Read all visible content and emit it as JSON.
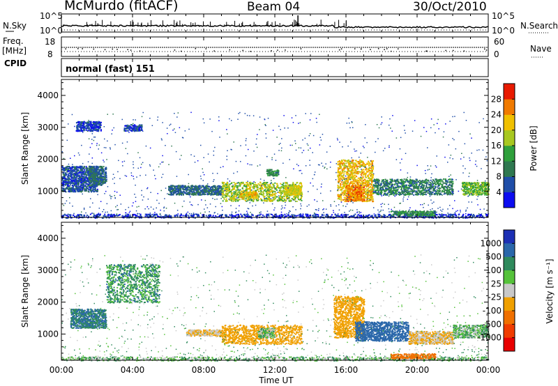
{
  "header": {
    "station": "McMurdo (fitACF)",
    "beam": "Beam 04",
    "date": "30/Oct/2010"
  },
  "noise_panel": {
    "left_label": "N.Sky",
    "right_label": "N.Search",
    "left_ticks": [
      "10^5",
      "10^0"
    ],
    "right_ticks": [
      "10^5",
      "10^0"
    ]
  },
  "freq_panel": {
    "left_label_line1": "Freq.",
    "left_label_line2": "[MHz]",
    "right_label": "Nave",
    "left_ticks": [
      "18",
      "8"
    ],
    "right_ticks": [
      "60",
      "0"
    ]
  },
  "cpid": {
    "label": "CPID",
    "value": "normal (fast) 151"
  },
  "axes": {
    "ylabel": "Slant Range [km]",
    "xlabel": "Time UT",
    "y_ticks": [
      "4000",
      "3000",
      "2000",
      "1000"
    ],
    "x_ticks": [
      "00:00",
      "04:00",
      "08:00",
      "12:00",
      "16:00",
      "20:00",
      "00:00"
    ]
  },
  "power_scale": {
    "label": "Power [dB]",
    "ticks": [
      "28",
      "24",
      "20",
      "16",
      "12",
      "8",
      "4"
    ],
    "colors": [
      "#0c0cf0",
      "#1f4ea8",
      "#2f7850",
      "#2fa03c",
      "#a8c820",
      "#f0c000",
      "#f07a00",
      "#e81a00"
    ]
  },
  "velocity_scale": {
    "label": "Velocity [m s⁻¹]",
    "ticks": [
      "1000",
      "500",
      "100",
      "25",
      "-25",
      "-100",
      "-500",
      "-1000"
    ],
    "colors": [
      "#1c2fb4",
      "#2a67aa",
      "#2f8a5c",
      "#55c23a",
      "#c8c8c8",
      "#f0a000",
      "#f07000",
      "#f03c00",
      "#e80000"
    ]
  },
  "chart_data": [
    {
      "type": "heatmap",
      "title": "Power",
      "xlabel": "Time UT",
      "ylabel": "Slant Range [km]",
      "xlim": [
        0,
        24
      ],
      "ylim": [
        180,
        4500
      ],
      "colorbar": "Power [dB]",
      "clim": [
        0,
        32
      ],
      "echo_regions": [
        {
          "t_start": 0.0,
          "t_end": 24.0,
          "range_min": 180,
          "range_max": 300,
          "power": 4
        },
        {
          "t_start": 0.0,
          "t_end": 2.0,
          "range_min": 1000,
          "range_max": 1800,
          "power": 6
        },
        {
          "t_start": 1.5,
          "t_end": 2.5,
          "range_min": 1200,
          "range_max": 1800,
          "power": 8
        },
        {
          "t_start": 0.8,
          "t_end": 2.2,
          "range_min": 2900,
          "range_max": 3200,
          "power": 5
        },
        {
          "t_start": 3.5,
          "t_end": 4.5,
          "range_min": 2900,
          "range_max": 3100,
          "power": 5
        },
        {
          "t_start": 6.0,
          "t_end": 9.0,
          "range_min": 900,
          "range_max": 1200,
          "power": 8
        },
        {
          "t_start": 9.0,
          "t_end": 13.5,
          "range_min": 700,
          "range_max": 1300,
          "power": 18
        },
        {
          "t_start": 10.0,
          "t_end": 11.0,
          "range_min": 800,
          "range_max": 1000,
          "power": 22
        },
        {
          "t_start": 12.5,
          "t_end": 13.5,
          "range_min": 900,
          "range_max": 1200,
          "power": 20
        },
        {
          "t_start": 11.5,
          "t_end": 12.2,
          "range_min": 1500,
          "range_max": 1700,
          "power": 12
        },
        {
          "t_start": 15.5,
          "t_end": 17.5,
          "range_min": 700,
          "range_max": 2000,
          "power": 22
        },
        {
          "t_start": 16.0,
          "t_end": 17.0,
          "range_min": 700,
          "range_max": 1200,
          "power": 26
        },
        {
          "t_start": 17.5,
          "t_end": 22.0,
          "range_min": 900,
          "range_max": 1400,
          "power": 10
        },
        {
          "t_start": 22.5,
          "t_end": 24.0,
          "range_min": 900,
          "range_max": 1300,
          "power": 16
        },
        {
          "t_start": 18.5,
          "t_end": 21.0,
          "range_min": 250,
          "range_max": 400,
          "power": 12
        }
      ]
    },
    {
      "type": "heatmap",
      "title": "Velocity",
      "xlabel": "Time UT",
      "ylabel": "Slant Range [km]",
      "xlim": [
        0,
        24
      ],
      "ylim": [
        180,
        4500
      ],
      "colorbar": "Velocity [m s⁻¹]",
      "clim": [
        -1000,
        1000
      ],
      "echo_regions": [
        {
          "t_start": 0.0,
          "t_end": 24.0,
          "range_min": 180,
          "range_max": 300,
          "velocity": 0
        },
        {
          "t_start": 0.5,
          "t_end": 2.5,
          "range_min": 1200,
          "range_max": 1800,
          "velocity": 100
        },
        {
          "t_start": 2.5,
          "t_end": 5.5,
          "range_min": 2000,
          "range_max": 3200,
          "velocity": 50
        },
        {
          "t_start": 7.0,
          "t_end": 9.0,
          "range_min": 950,
          "range_max": 1150,
          "velocity": -100
        },
        {
          "t_start": 9.0,
          "t_end": 13.5,
          "range_min": 700,
          "range_max": 1300,
          "velocity": -300
        },
        {
          "t_start": 11.0,
          "t_end": 12.0,
          "range_min": 900,
          "range_max": 1200,
          "velocity": 0
        },
        {
          "t_start": 15.3,
          "t_end": 17.0,
          "range_min": 900,
          "range_max": 2200,
          "velocity": -400
        },
        {
          "t_start": 16.5,
          "t_end": 19.5,
          "range_min": 800,
          "range_max": 1400,
          "velocity": 200
        },
        {
          "t_start": 19.5,
          "t_end": 22.0,
          "range_min": 700,
          "range_max": 1100,
          "velocity": -100
        },
        {
          "t_start": 22.0,
          "t_end": 24.0,
          "range_min": 900,
          "range_max": 1300,
          "velocity": 0
        },
        {
          "t_start": 18.5,
          "t_end": 21.0,
          "range_min": 250,
          "range_max": 400,
          "velocity": -600
        }
      ]
    }
  ]
}
